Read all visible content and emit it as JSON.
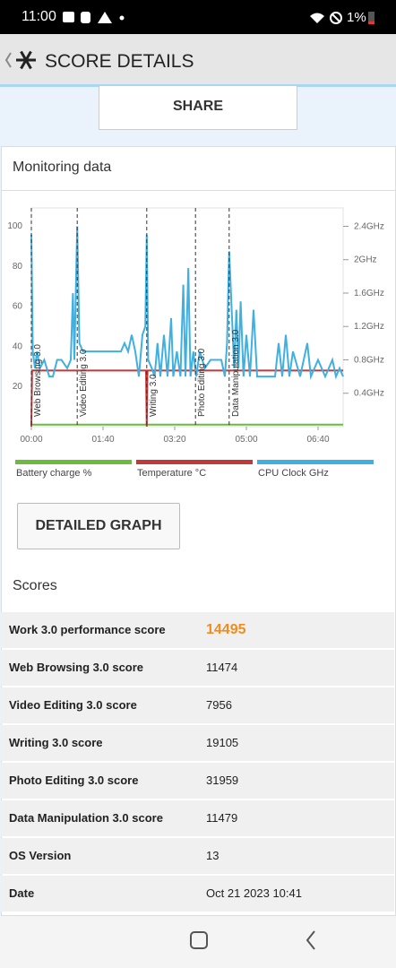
{
  "status_bar": {
    "time": "11:00",
    "battery": "1%"
  },
  "header": {
    "title": "SCORE DETAILS"
  },
  "share_button": "SHARE",
  "monitoring": {
    "title": "Monitoring data",
    "chart_data": {
      "type": "line",
      "xlim": [
        0,
        435
      ],
      "xticks": [
        {
          "value": 0,
          "label": "00:00"
        },
        {
          "value": 100,
          "label": "01:40"
        },
        {
          "value": 200,
          "label": "03:20"
        },
        {
          "value": 300,
          "label": "05:00"
        },
        {
          "value": 400,
          "label": "06:40"
        }
      ],
      "ylim": [
        0,
        109
      ],
      "yticks": [
        20,
        40,
        60,
        80,
        100
      ],
      "y2lim": [
        0,
        2.62
      ],
      "y2ticks": [
        {
          "value": 0.4,
          "label": "0.4GHz"
        },
        {
          "value": 0.8,
          "label": "0.8GHz"
        },
        {
          "value": 1.2,
          "label": "1.2GHz"
        },
        {
          "value": 1.6,
          "label": "1.6GHz"
        },
        {
          "value": 2,
          "label": "2GHz"
        },
        {
          "value": 2.4,
          "label": "2.4GHz"
        }
      ],
      "grid": false,
      "annotations": [
        {
          "x": 0,
          "label": "Web Browsing 3.0"
        },
        {
          "x": 64,
          "label": "Video Editing 3.0"
        },
        {
          "x": 161,
          "label": "Writing 3.0"
        },
        {
          "x": 229,
          "label": "Photo Editing 3.0"
        },
        {
          "x": 276,
          "label": "Data Manipulation 3.0"
        }
      ],
      "series": [
        {
          "name": "Battery charge %",
          "color": "#6cbb3c",
          "axis": "y",
          "x": [
            0,
            435
          ],
          "values": [
            1,
            1
          ]
        },
        {
          "name": "Temperature °C",
          "color": "#c0393b",
          "axis": "y",
          "x": [
            0,
            1,
            2,
            64,
            65,
            160,
            161,
            162,
            435
          ],
          "values": [
            0,
            28,
            28,
            28,
            28,
            28,
            0,
            28,
            28
          ]
        },
        {
          "name": "CPU Clock GHz",
          "color": "#3fb0e0",
          "axis": "y2",
          "x": [
            0,
            2,
            5,
            8,
            12,
            18,
            25,
            30,
            36,
            42,
            50,
            55,
            58,
            60,
            64,
            67,
            72,
            78,
            85,
            92,
            100,
            108,
            115,
            125,
            130,
            135,
            140,
            145,
            150,
            155,
            159,
            161,
            163,
            168,
            172,
            176,
            180,
            185,
            190,
            195,
            198,
            203,
            208,
            212,
            215,
            219,
            222,
            226,
            230,
            235,
            242,
            250,
            258,
            265,
            270,
            273,
            276,
            279,
            283,
            286,
            289,
            292,
            296,
            300,
            305,
            310,
            315,
            320,
            330,
            340,
            345,
            350,
            355,
            360,
            365,
            375,
            385,
            390,
            400,
            410,
            420,
            425,
            430,
            435
          ],
          "values": [
            2.3,
            0.9,
            0.7,
            0.9,
            0.7,
            0.8,
            0.6,
            0.6,
            0.8,
            0.8,
            0.7,
            0.8,
            1.6,
            0.8,
            2.4,
            1.0,
            0.9,
            0.9,
            0.9,
            0.9,
            0.9,
            0.9,
            0.9,
            0.9,
            1.0,
            0.9,
            1.1,
            0.9,
            0.6,
            1.1,
            1.2,
            2.3,
            0.8,
            0.7,
            0.6,
            1.0,
            0.6,
            1.1,
            0.6,
            1.3,
            0.6,
            0.9,
            0.6,
            1.7,
            0.6,
            1.9,
            0.6,
            0.9,
            0.6,
            0.9,
            0.7,
            0.8,
            0.8,
            0.8,
            0.6,
            1.0,
            2.1,
            1.5,
            0.7,
            1.4,
            0.7,
            1.5,
            0.6,
            1.1,
            0.6,
            1.4,
            0.6,
            0.6,
            0.6,
            0.6,
            1.0,
            0.6,
            1.1,
            0.6,
            0.9,
            0.6,
            1.0,
            0.6,
            0.8,
            0.6,
            0.8,
            0.6,
            0.7,
            0.6
          ]
        }
      ]
    }
  },
  "detailed_graph_button": "DETAILED GRAPH",
  "scores": {
    "title": "Scores",
    "rows": [
      [
        "Work 3.0 performance score",
        "14495"
      ],
      [
        "Web Browsing 3.0 score",
        "11474"
      ],
      [
        "Video Editing 3.0 score",
        "7956"
      ],
      [
        "Writing 3.0 score",
        "19105"
      ],
      [
        "Photo Editing 3.0 score",
        "31959"
      ],
      [
        "Data Manipulation 3.0 score",
        "11479"
      ],
      [
        "OS Version",
        "13"
      ],
      [
        "Date",
        "Oct 21 2023 10:41"
      ]
    ]
  }
}
